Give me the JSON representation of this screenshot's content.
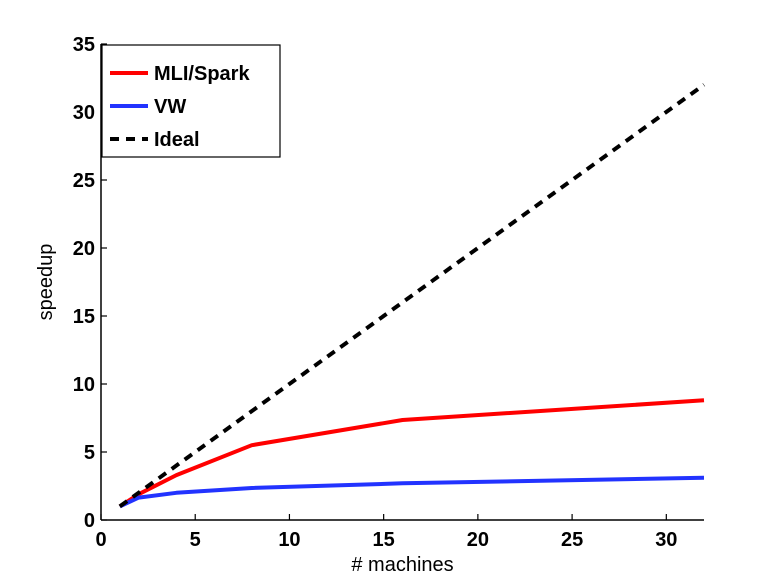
{
  "chart_data": {
    "type": "line",
    "xlabel": "# machines",
    "ylabel": "speedup",
    "xlim": [
      0,
      32
    ],
    "ylim": [
      0,
      35
    ],
    "xticks": [
      0,
      5,
      10,
      15,
      20,
      25,
      30
    ],
    "yticks": [
      0,
      5,
      10,
      15,
      20,
      25,
      30,
      35
    ],
    "grid": false,
    "legend_position": "top-left",
    "series": [
      {
        "name": "MLI/Spark",
        "color": "#ff0000",
        "dash": "solid",
        "x": [
          1,
          2,
          4,
          8,
          16,
          32
        ],
        "y": [
          1,
          1.9,
          3.3,
          5.5,
          7.35,
          8.8
        ]
      },
      {
        "name": "VW",
        "color": "#2233ff",
        "dash": "solid",
        "x": [
          1,
          2,
          4,
          8,
          16,
          32
        ],
        "y": [
          1,
          1.65,
          2.0,
          2.35,
          2.7,
          3.1
        ]
      },
      {
        "name": "Ideal",
        "color": "#000000",
        "dash": "dashed",
        "x": [
          1,
          32
        ],
        "y": [
          1,
          32
        ]
      }
    ]
  }
}
